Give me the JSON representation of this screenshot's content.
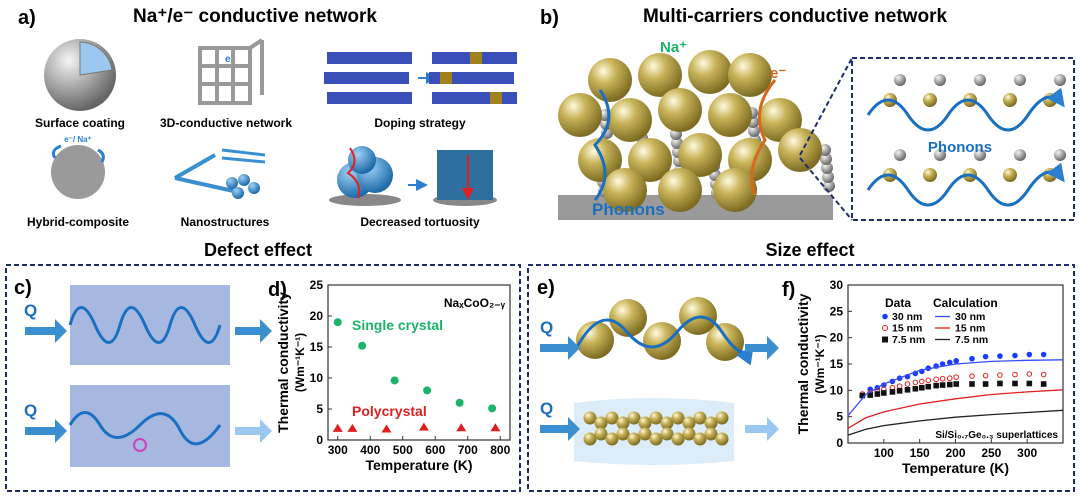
{
  "panel_a": {
    "letter": "a)",
    "title": "Na⁺/e⁻ conductive network",
    "items": [
      "Surface coating",
      "3D-conductive network",
      "Doping strategy",
      "Hybrid-composite",
      "Nanostructures",
      "Decreased tortuosity"
    ],
    "hybrid_label": "e⁻/ Na⁺",
    "e_label": "e"
  },
  "panel_b": {
    "letter": "b)",
    "title": "Multi-carriers conductive network",
    "na_label": "Na⁺",
    "e_label": "e⁻",
    "phonons_label": "Phonons",
    "inset_phonons_label": "Phonons"
  },
  "section_titles": {
    "defect": "Defect effect",
    "size": "Size effect"
  },
  "panel_c": {
    "letter": "c)",
    "q1": "Q",
    "q2": "Q"
  },
  "panel_e": {
    "letter": "e)",
    "q1": "Q",
    "q2": "Q"
  },
  "colors": {
    "green": "#1db36b",
    "red": "#e02020",
    "blue": "#1a3cff",
    "phonon_blue": "#1a6fc0",
    "frame": "#1f2d6b",
    "gold": "#b8a44a"
  },
  "chart_data": [
    {
      "panel": "d)",
      "type": "scatter",
      "annotation": "NaₓCoO₂₋ᵧ",
      "xlabel": "Temperature (K)",
      "ylabel": "Thermal conductivity",
      "ylabel_unit": "(Wm⁻¹K⁻¹)",
      "xlim": [
        270,
        830
      ],
      "ylim": [
        0,
        25
      ],
      "xticks": [
        300,
        400,
        500,
        600,
        700,
        800
      ],
      "yticks": [
        0,
        5,
        10,
        15,
        20,
        25
      ],
      "series": [
        {
          "name": "Single crystal",
          "marker": "circle",
          "color": "#1db36b",
          "x": [
            300,
            375,
            475,
            575,
            675,
            775
          ],
          "y": [
            19,
            15.2,
            9.6,
            8,
            6,
            5.1
          ]
        },
        {
          "name": "Polycrystal",
          "marker": "triangle",
          "color": "#e02020",
          "x": [
            300,
            345,
            450,
            565,
            680,
            785
          ],
          "y": [
            1.8,
            1.8,
            1.7,
            2.0,
            1.9,
            1.9
          ]
        }
      ]
    },
    {
      "panel": "f)",
      "type": "scatter",
      "annotation": "Si/Si₀.₇Ge₀.₃ superlattices",
      "xlabel": "Temperature (K)",
      "ylabel": "Thermal conductivity",
      "ylabel_unit": "(Wm⁻¹K⁻¹)",
      "xlim": [
        50,
        350
      ],
      "ylim": [
        0,
        30
      ],
      "xticks": [
        100,
        150,
        200,
        250,
        300
      ],
      "yticks": [
        0,
        5,
        10,
        15,
        20,
        25,
        30
      ],
      "legend_headers": [
        "Data",
        "Calculation"
      ],
      "series": [
        {
          "name": "30 nm",
          "kind": "data",
          "marker": "circle",
          "color": "#1a3cff",
          "x": [
            70,
            81,
            91,
            100,
            112,
            122,
            133,
            144,
            153,
            162,
            173,
            182,
            192,
            201,
            223,
            242,
            262,
            283,
            303,
            323
          ],
          "y": [
            9.0,
            10.2,
            10.5,
            11.0,
            11.7,
            12.3,
            12.6,
            13.2,
            13.6,
            14.2,
            14.6,
            15.0,
            15.3,
            15.6,
            16.0,
            16.4,
            16.5,
            16.6,
            16.8,
            16.8
          ]
        },
        {
          "name": "15 nm",
          "kind": "data",
          "marker": "open-circle",
          "color": "#e02020",
          "x": [
            70,
            81,
            91,
            100,
            112,
            122,
            133,
            144,
            153,
            162,
            173,
            182,
            192,
            201,
            223,
            242,
            262,
            283,
            303,
            323
          ],
          "y": [
            9.3,
            9.6,
            9.9,
            10.2,
            10.5,
            10.8,
            11.2,
            11.5,
            11.7,
            11.9,
            12.1,
            12.2,
            12.3,
            12.5,
            12.7,
            12.8,
            12.9,
            13.0,
            13.1,
            13.0
          ]
        },
        {
          "name": "7.5 nm",
          "kind": "data",
          "marker": "square",
          "color": "#111111",
          "x": [
            70,
            81,
            91,
            100,
            112,
            122,
            133,
            144,
            153,
            162,
            173,
            182,
            192,
            201,
            223,
            242,
            262,
            283,
            303,
            323
          ],
          "y": [
            9.0,
            9.1,
            9.3,
            9.5,
            9.7,
            9.9,
            10.1,
            10.3,
            10.5,
            10.7,
            10.9,
            11.0,
            11.1,
            11.2,
            11.2,
            11.2,
            11.3,
            11.3,
            11.3,
            11.2
          ]
        },
        {
          "name": "30 nm",
          "kind": "calculation",
          "color": "#3a4cff",
          "x": [
            50,
            75,
            100,
            150,
            200,
            250,
            300,
            350
          ],
          "y": [
            5.2,
            9.2,
            11.2,
            13.8,
            15.0,
            15.5,
            15.7,
            15.8
          ]
        },
        {
          "name": "15 nm",
          "kind": "calculation",
          "color": "#e02020",
          "x": [
            50,
            75,
            100,
            150,
            200,
            250,
            300,
            350
          ],
          "y": [
            2.8,
            4.8,
            5.9,
            7.4,
            8.4,
            9.2,
            9.7,
            10.1
          ]
        },
        {
          "name": "7.5 nm",
          "kind": "calculation",
          "color": "#222222",
          "x": [
            50,
            75,
            100,
            150,
            200,
            250,
            300,
            350
          ],
          "y": [
            1.5,
            2.6,
            3.3,
            4.2,
            4.9,
            5.4,
            5.8,
            6.2
          ]
        }
      ]
    }
  ]
}
